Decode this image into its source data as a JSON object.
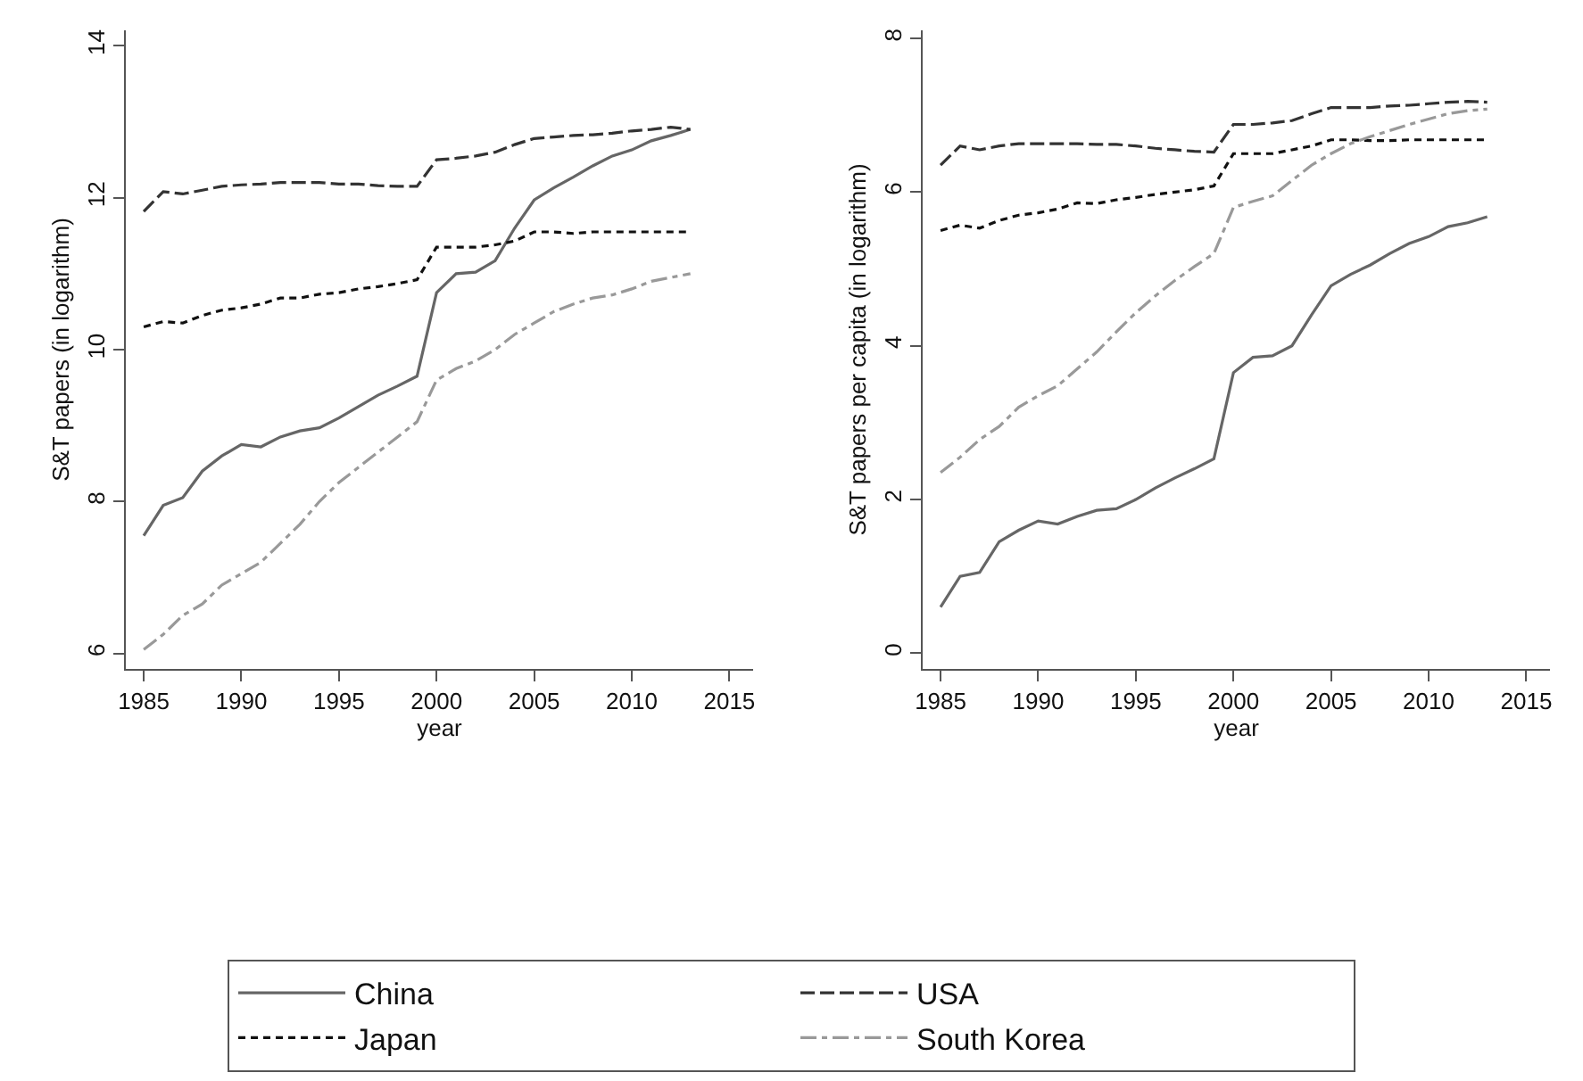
{
  "chart_data": [
    {
      "type": "line",
      "xlabel": "year",
      "ylabel": "S&T papers (in logarithm)",
      "xlim": [
        1984.1,
        2016.2
      ],
      "xticks": [
        1985,
        1990,
        1995,
        2000,
        2005,
        2010,
        2015
      ],
      "ylim": [
        5.8,
        14.2
      ],
      "yticks": [
        6,
        8,
        10,
        12,
        14
      ],
      "legend": "bottom",
      "marker": "none",
      "x": [
        1985,
        1986,
        1987,
        1988,
        1989,
        1990,
        1991,
        1992,
        1993,
        1994,
        1995,
        1996,
        1997,
        1998,
        1999,
        2000,
        2001,
        2002,
        2003,
        2004,
        2005,
        2006,
        2007,
        2008,
        2009,
        2010,
        2011,
        2012,
        2013
      ],
      "series": [
        {
          "name": "China",
          "color": "#666666",
          "line_style": "solid",
          "values": [
            7.55,
            7.95,
            8.05,
            8.4,
            8.6,
            8.75,
            8.72,
            8.85,
            8.93,
            8.97,
            9.1,
            9.25,
            9.4,
            9.52,
            9.65,
            10.75,
            11.0,
            11.02,
            11.17,
            11.6,
            11.97,
            12.13,
            12.27,
            12.42,
            12.55,
            12.63,
            12.75,
            12.82,
            12.9
          ]
        },
        {
          "name": "USA",
          "color": "#333333",
          "line_style": "dashed",
          "values": [
            11.82,
            12.08,
            12.05,
            12.1,
            12.15,
            12.17,
            12.18,
            12.2,
            12.2,
            12.2,
            12.18,
            12.18,
            12.16,
            12.15,
            12.15,
            12.5,
            12.52,
            12.55,
            12.6,
            12.7,
            12.78,
            12.8,
            12.82,
            12.83,
            12.85,
            12.88,
            12.9,
            12.93,
            12.9
          ]
        },
        {
          "name": "Japan",
          "color": "#111111",
          "line_style": "dotted",
          "values": [
            10.3,
            10.37,
            10.35,
            10.45,
            10.52,
            10.55,
            10.6,
            10.68,
            10.68,
            10.73,
            10.75,
            10.8,
            10.83,
            10.87,
            10.92,
            11.35,
            11.35,
            11.35,
            11.38,
            11.43,
            11.55,
            11.55,
            11.53,
            11.55,
            11.55,
            11.55,
            11.55,
            11.55,
            11.55
          ]
        },
        {
          "name": "South Korea",
          "color": "#999999",
          "line_style": "dashdot",
          "values": [
            6.05,
            6.25,
            6.5,
            6.65,
            6.9,
            7.05,
            7.2,
            7.45,
            7.7,
            8.0,
            8.25,
            8.45,
            8.65,
            8.85,
            9.05,
            9.6,
            9.75,
            9.85,
            10.0,
            10.2,
            10.35,
            10.5,
            10.6,
            10.68,
            10.72,
            10.8,
            10.9,
            10.95,
            11.0
          ]
        }
      ]
    },
    {
      "type": "line",
      "xlabel": "year",
      "ylabel": "S&T papers per capita (in logarithm)",
      "xlim": [
        1984.1,
        2016.2
      ],
      "xticks": [
        1985,
        1990,
        1995,
        2000,
        2005,
        2010,
        2015
      ],
      "ylim": [
        -0.2,
        8.1
      ],
      "yticks": [
        0,
        2,
        4,
        6,
        8
      ],
      "marker": "none",
      "x": [
        1985,
        1986,
        1987,
        1988,
        1989,
        1990,
        1991,
        1992,
        1993,
        1994,
        1995,
        1996,
        1997,
        1998,
        1999,
        2000,
        2001,
        2002,
        2003,
        2004,
        2005,
        2006,
        2007,
        2008,
        2009,
        2010,
        2011,
        2012,
        2013
      ],
      "series": [
        {
          "color": "#666666",
          "line_style": "solid",
          "values": [
            0.6,
            1.0,
            1.05,
            1.45,
            1.6,
            1.72,
            1.68,
            1.78,
            1.86,
            1.88,
            2.0,
            2.15,
            2.28,
            2.4,
            2.53,
            3.65,
            3.85,
            3.87,
            4.0,
            4.4,
            4.78,
            4.93,
            5.05,
            5.2,
            5.33,
            5.42,
            5.55,
            5.6,
            5.68
          ]
        },
        {
          "color": "#333333",
          "line_style": "dashed",
          "values": [
            6.35,
            6.6,
            6.55,
            6.6,
            6.63,
            6.63,
            6.63,
            6.63,
            6.62,
            6.62,
            6.6,
            6.57,
            6.55,
            6.53,
            6.52,
            6.88,
            6.88,
            6.9,
            6.93,
            7.02,
            7.1,
            7.1,
            7.1,
            7.12,
            7.13,
            7.15,
            7.17,
            7.18,
            7.17
          ]
        },
        {
          "color": "#111111",
          "line_style": "dotted",
          "values": [
            5.5,
            5.57,
            5.53,
            5.63,
            5.7,
            5.73,
            5.78,
            5.86,
            5.85,
            5.9,
            5.93,
            5.97,
            6.0,
            6.03,
            6.08,
            6.5,
            6.5,
            6.5,
            6.55,
            6.6,
            6.68,
            6.68,
            6.67,
            6.67,
            6.68,
            6.68,
            6.68,
            6.68,
            6.68
          ]
        },
        {
          "color": "#999999",
          "line_style": "dashdot",
          "values": [
            2.35,
            2.55,
            2.78,
            2.95,
            3.2,
            3.35,
            3.48,
            3.7,
            3.92,
            4.18,
            4.43,
            4.65,
            4.85,
            5.03,
            5.2,
            5.8,
            5.88,
            5.95,
            6.15,
            6.35,
            6.5,
            6.63,
            6.72,
            6.8,
            6.88,
            6.95,
            7.02,
            7.06,
            7.08
          ]
        }
      ]
    }
  ]
}
